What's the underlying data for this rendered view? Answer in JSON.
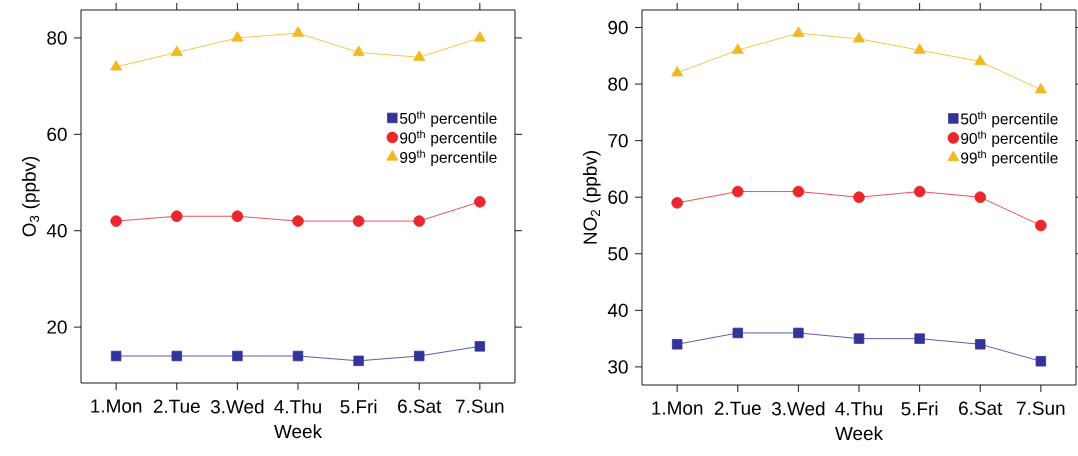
{
  "chart_data": [
    {
      "type": "line",
      "xlabel": "Week",
      "ylabel": "O$_{3}$ (ppbv)",
      "categories": [
        "1.Mon",
        "2.Tue",
        "3.Wed",
        "4.Thu",
        "5.Fri",
        "6.Sat",
        "7.Sun"
      ],
      "ylim": [
        8.4,
        85.8
      ],
      "yticks": [
        20,
        40,
        60,
        80
      ],
      "legend": "right",
      "line_style": "solid",
      "series": [
        {
          "name": "50$^{th}$ percentile",
          "color": "#333399",
          "marker": "square",
          "values": [
            14,
            14,
            14,
            14,
            13,
            14,
            16
          ]
        },
        {
          "name": "90$^{th}$ percentile",
          "color": "#e8282d",
          "marker": "circle",
          "values": [
            42,
            43,
            43,
            42,
            42,
            42,
            46
          ]
        },
        {
          "name": "99$^{th}$ percentile",
          "color": "#f2b81e",
          "marker": "triangle",
          "values": [
            74,
            77,
            80,
            81,
            77,
            76,
            80
          ]
        }
      ]
    },
    {
      "type": "line",
      "xlabel": "Week",
      "ylabel": "NO$_{2}$ (ppbv)",
      "categories": [
        "1.Mon",
        "2.Tue",
        "3.Wed",
        "4.Thu",
        "5.Fri",
        "6.Sat",
        "7.Sun"
      ],
      "ylim": [
        26.8,
        93.1
      ],
      "yticks": [
        30,
        40,
        50,
        60,
        70,
        80,
        90
      ],
      "legend": "right",
      "line_style": "solid",
      "series": [
        {
          "name": "50$^{th}$ percentile",
          "color": "#333399",
          "marker": "square",
          "values": [
            34,
            36,
            36,
            35,
            35,
            34,
            31
          ]
        },
        {
          "name": "90$^{th}$ percentile",
          "color": "#e8282d",
          "marker": "circle",
          "values": [
            59,
            61,
            61,
            60,
            61,
            60,
            55
          ]
        },
        {
          "name": "99$^{th}$ percentile",
          "color": "#f2b81e",
          "marker": "triangle",
          "values": [
            82,
            86,
            89,
            88,
            86,
            84,
            79
          ]
        }
      ]
    }
  ]
}
